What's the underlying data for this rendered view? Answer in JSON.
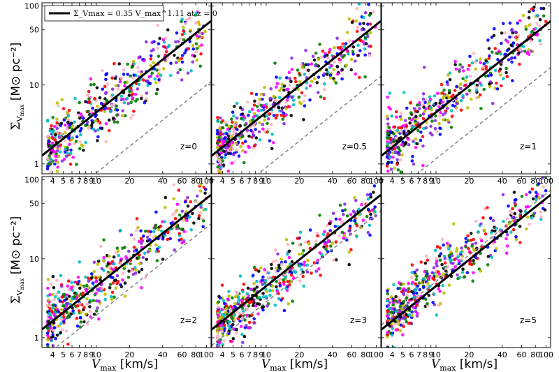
{
  "chart_data": {
    "type": "scatter",
    "xscale": "log",
    "yscale": "log",
    "xlim": [
      3.2,
      110
    ],
    "ylim": [
      0.75,
      110
    ],
    "x_ticks": [
      4,
      5,
      6,
      7,
      8,
      9,
      10,
      20,
      40,
      60,
      80,
      100
    ],
    "x_tick_labels": [
      "4",
      "5",
      "6",
      "7",
      "8",
      "9",
      "10",
      "20",
      "40",
      "60",
      "80",
      "100"
    ],
    "y_ticks": [
      1,
      10,
      50,
      100
    ],
    "y_tick_labels": [
      "1",
      "10",
      "50",
      "100"
    ],
    "xlabel_var": "V",
    "xlabel_sub": "max",
    "xlabel_unit": "[km/s]",
    "ylabel_var": "Σ",
    "ylabel_sub": "V",
    "ylabel_subsub": "max",
    "ylabel_unit": "[M⊙ pc⁻²]",
    "legend": {
      "placement": "top-left",
      "entry": "Σ_Vmax = 0.35 V_max^1.11 at z = 0"
    },
    "fit_line": {
      "amplitude": 0.35,
      "exponent": 1.11,
      "color": "#000000",
      "style": "solid"
    },
    "point_colors": [
      "#0000ff",
      "#ff0000",
      "#000000",
      "#008000",
      "#ff00ff",
      "#00bfbf",
      "#bfbf00",
      "#ffb6c1",
      "#8a2be2"
    ],
    "panels": [
      {
        "label": "z=0",
        "dashed_amplitude": 0.06,
        "dashed_exponent": 1.11,
        "scatter_amp": 0.37,
        "scatter_exp": 1.08,
        "scatter_dex": 0.19
      },
      {
        "label": "z=0.5",
        "dashed_amplitude": 0.07,
        "dashed_exponent": 1.11,
        "scatter_amp": 0.38,
        "scatter_exp": 1.08,
        "scatter_dex": 0.19
      },
      {
        "label": "z=1",
        "dashed_amplitude": 0.09,
        "dashed_exponent": 1.11,
        "scatter_amp": 0.42,
        "scatter_exp": 1.08,
        "scatter_dex": 0.19
      },
      {
        "label": "z=2",
        "dashed_amplitude": 0.15,
        "dashed_exponent": 1.11,
        "scatter_amp": 0.4,
        "scatter_exp": 1.07,
        "scatter_dex": 0.18
      },
      {
        "label": "z=3",
        "dashed_amplitude": 0.22,
        "dashed_exponent": 1.11,
        "scatter_amp": 0.32,
        "scatter_exp": 1.11,
        "scatter_dex": 0.17
      },
      {
        "label": "z=5",
        "dashed_amplitude": 0.4,
        "dashed_exponent": 1.11,
        "scatter_amp": 0.45,
        "scatter_exp": 1.1,
        "scatter_dex": 0.17
      }
    ]
  }
}
